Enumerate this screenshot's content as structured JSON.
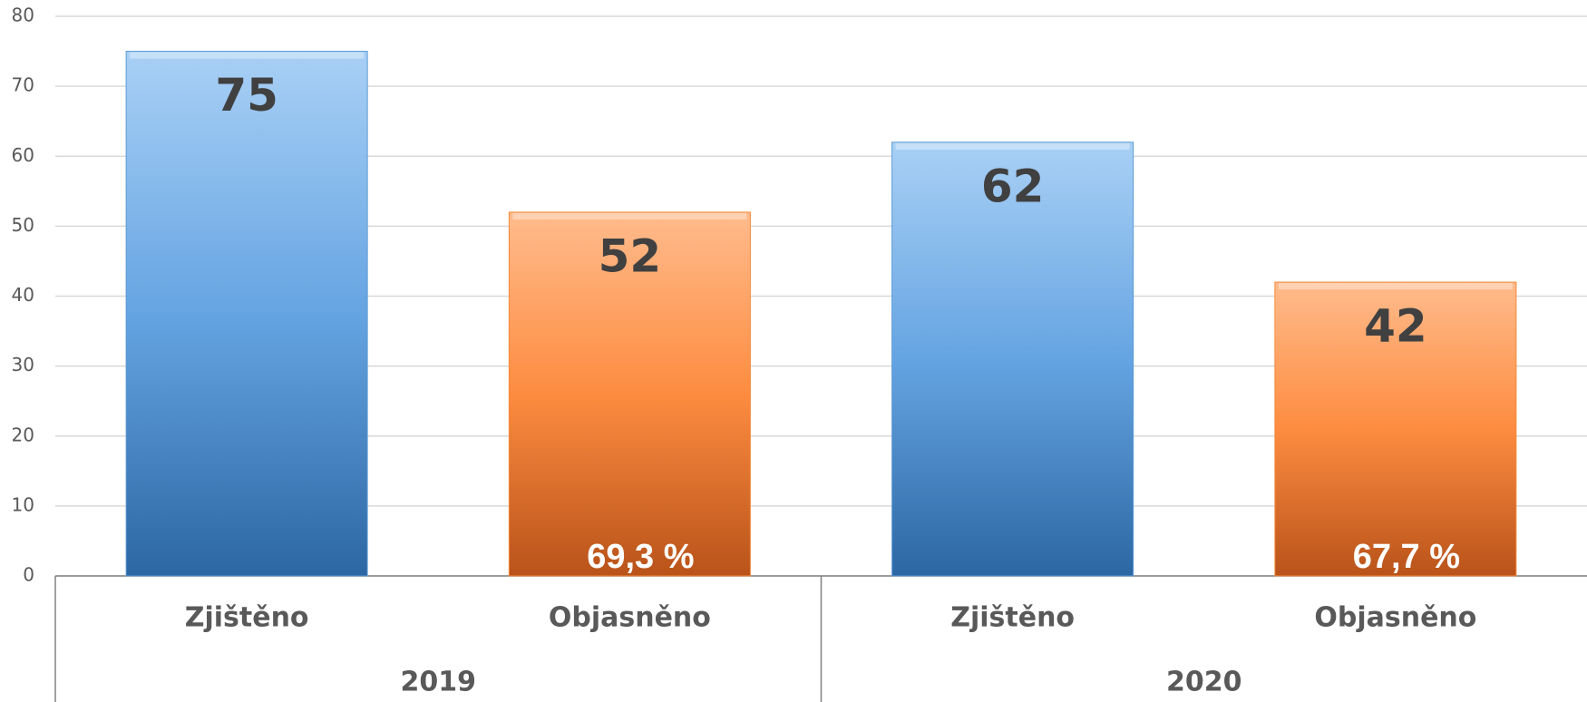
{
  "chart_data": {
    "type": "bar",
    "categories": [
      "Zjištěno",
      "Objasněno",
      "Zjištěno",
      "Objasněno"
    ],
    "groups": [
      {
        "name": "2019",
        "annotation": "69,3 %"
      },
      {
        "name": "2020",
        "annotation": "67,7 %"
      }
    ],
    "values": [
      75,
      52,
      62,
      42
    ],
    "colors": [
      "#5b9bd5",
      "#f4893a",
      "#5b9bd5",
      "#f4893a"
    ],
    "ylim": [
      0,
      80
    ],
    "yticks": [
      0,
      10,
      20,
      30,
      40,
      50,
      60,
      70,
      80
    ],
    "grid": true
  }
}
